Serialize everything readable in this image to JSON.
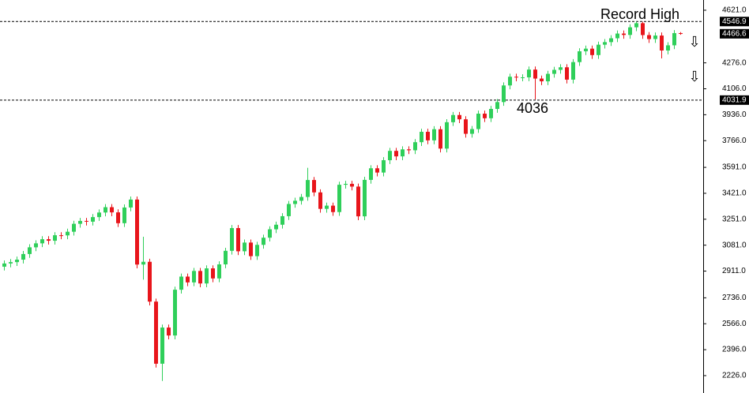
{
  "chart_data": {
    "type": "candlestick",
    "open": [
      2940,
      2961,
      2970,
      2986,
      3023,
      3067,
      3093,
      3120,
      3110,
      3146,
      3145,
      3169,
      3221,
      3240,
      3235,
      3265,
      3295,
      3330,
      3296,
      3225,
      3328,
      3380,
      2954,
      2972,
      2711,
      2304,
      2541,
      2489,
      2789,
      2875,
      2837,
      2912,
      2830,
      2929,
      2863,
      2955,
      3044,
      3193,
      3041,
      3098,
      3009,
      3083,
      3130,
      3185,
      3215,
      3271,
      3351,
      3372,
      3397,
      3508,
      3427,
      3319,
      3340,
      3298,
      3477,
      3483,
      3465,
      3270,
      3509,
      3585,
      3557,
      3638,
      3699,
      3663,
      3709,
      3703,
      3756,
      3824,
      3768,
      3841,
      3714,
      3887,
      3934,
      3906,
      3811,
      3842,
      3943,
      3913,
      3974,
      4019,
      4128,
      4185,
      4180,
      4181,
      4232,
      4173,
      4155,
      4204,
      4230,
      4247,
      4166,
      4281,
      4352,
      4369,
      4327,
      4395,
      4412,
      4437,
      4468,
      4459,
      4509,
      4536,
      4458,
      4432,
      4455,
      4357,
      4391,
      4471
    ],
    "high": [
      2981,
      2990,
      3006,
      3043,
      3087,
      3113,
      3140,
      3140,
      3166,
      3166,
      3189,
      3241,
      3260,
      3260,
      3285,
      3315,
      3350,
      3350,
      3316,
      3348,
      3400,
      3400,
      3136,
      2992,
      2731,
      2561,
      2561,
      2809,
      2895,
      2895,
      2932,
      2932,
      2949,
      2949,
      2975,
      3064,
      3213,
      3213,
      3118,
      3118,
      3103,
      3150,
      3205,
      3235,
      3291,
      3371,
      3392,
      3417,
      3588,
      3528,
      3447,
      3360,
      3360,
      3497,
      3503,
      3503,
      3485,
      3529,
      3605,
      3605,
      3658,
      3719,
      3719,
      3729,
      3729,
      3776,
      3844,
      3844,
      3861,
      3861,
      3907,
      3954,
      3954,
      3926,
      3862,
      3963,
      3963,
      3994,
      4039,
      4148,
      4205,
      4205,
      4201,
      4252,
      4252,
      4193,
      4224,
      4250,
      4267,
      4267,
      4301,
      4372,
      4389,
      4389,
      4415,
      4432,
      4457,
      4488,
      4488,
      4529,
      4546.9,
      4545,
      4478,
      4475,
      4475,
      4411,
      4491,
      4478
    ],
    "low": [
      2915,
      2936,
      2945,
      2961,
      2998,
      3042,
      3068,
      3085,
      3085,
      3120,
      3120,
      3144,
      3196,
      3210,
      3210,
      3240,
      3270,
      3271,
      3200,
      3200,
      3303,
      2929,
      2855,
      2686,
      2279,
      2191,
      2464,
      2464,
      2764,
      2812,
      2812,
      2805,
      2805,
      2838,
      2838,
      2930,
      3019,
      3016,
      3016,
      2984,
      2984,
      3058,
      3105,
      3160,
      3190,
      3246,
      3326,
      3347,
      3372,
      3402,
      3294,
      3294,
      3273,
      3273,
      3452,
      3440,
      3245,
      3245,
      3484,
      3532,
      3532,
      3613,
      3638,
      3638,
      3678,
      3678,
      3731,
      3743,
      3743,
      3689,
      3689,
      3862,
      3881,
      3786,
      3786,
      3817,
      3888,
      3888,
      3949,
      3994,
      4103,
      4155,
      4155,
      4156,
      4036,
      4130,
      4130,
      4179,
      4205,
      4141,
      4141,
      4256,
      4327,
      4302,
      4302,
      4370,
      4387,
      4412,
      4434,
      4434,
      4484,
      4433,
      4407,
      4407,
      4305,
      4332,
      4366,
      4460
    ],
    "close": [
      2961,
      2970,
      2986,
      3023,
      3067,
      3093,
      3120,
      3110,
      3146,
      3145,
      3169,
      3221,
      3240,
      3235,
      3265,
      3295,
      3330,
      3296,
      3225,
      3328,
      3380,
      2954,
      2972,
      2711,
      2304,
      2541,
      2489,
      2789,
      2875,
      2837,
      2912,
      2830,
      2929,
      2863,
      2955,
      3044,
      3193,
      3041,
      3098,
      3009,
      3083,
      3130,
      3185,
      3215,
      3271,
      3351,
      3372,
      3397,
      3508,
      3427,
      3319,
      3340,
      3298,
      3477,
      3483,
      3465,
      3270,
      3509,
      3585,
      3557,
      3638,
      3699,
      3663,
      3709,
      3703,
      3756,
      3824,
      3768,
      3841,
      3714,
      3887,
      3934,
      3906,
      3811,
      3842,
      3943,
      3913,
      3974,
      4019,
      4128,
      4185,
      4180,
      4181,
      4232,
      4173,
      4155,
      4204,
      4230,
      4247,
      4166,
      4281,
      4352,
      4369,
      4327,
      4395,
      4412,
      4437,
      4468,
      4459,
      4509,
      4536,
      4458,
      4432,
      4455,
      4357,
      4391,
      4471,
      4466.6
    ],
    "up_color": "#2fcf5a",
    "down_color": "#e8151b",
    "ylim": [
      2112,
      4688
    ],
    "yticks": [
      {
        "value": 4621,
        "label": "4621.0"
      },
      {
        "value": 4276,
        "label": "4276.0"
      },
      {
        "value": 4106,
        "label": "4106.0"
      },
      {
        "value": 3936,
        "label": "3936.0"
      },
      {
        "value": 3766,
        "label": "3766.0"
      },
      {
        "value": 3591,
        "label": "3591.0"
      },
      {
        "value": 3421,
        "label": "3421.0"
      },
      {
        "value": 3251,
        "label": "3251.0"
      },
      {
        "value": 3081,
        "label": "3081.0"
      },
      {
        "value": 2911,
        "label": "2911.0"
      },
      {
        "value": 2736,
        "label": "2736.0"
      },
      {
        "value": 2566,
        "label": "2566.0"
      },
      {
        "value": 2396,
        "label": "2396.0"
      },
      {
        "value": 2226,
        "label": "2226.0"
      }
    ],
    "price_levels": [
      {
        "value": 4546.9,
        "dashed": true
      },
      {
        "value": 4466.6,
        "dashed": false
      },
      {
        "value": 4031.9,
        "dashed": true
      }
    ],
    "annotations": [
      "Record High",
      "4036"
    ]
  }
}
